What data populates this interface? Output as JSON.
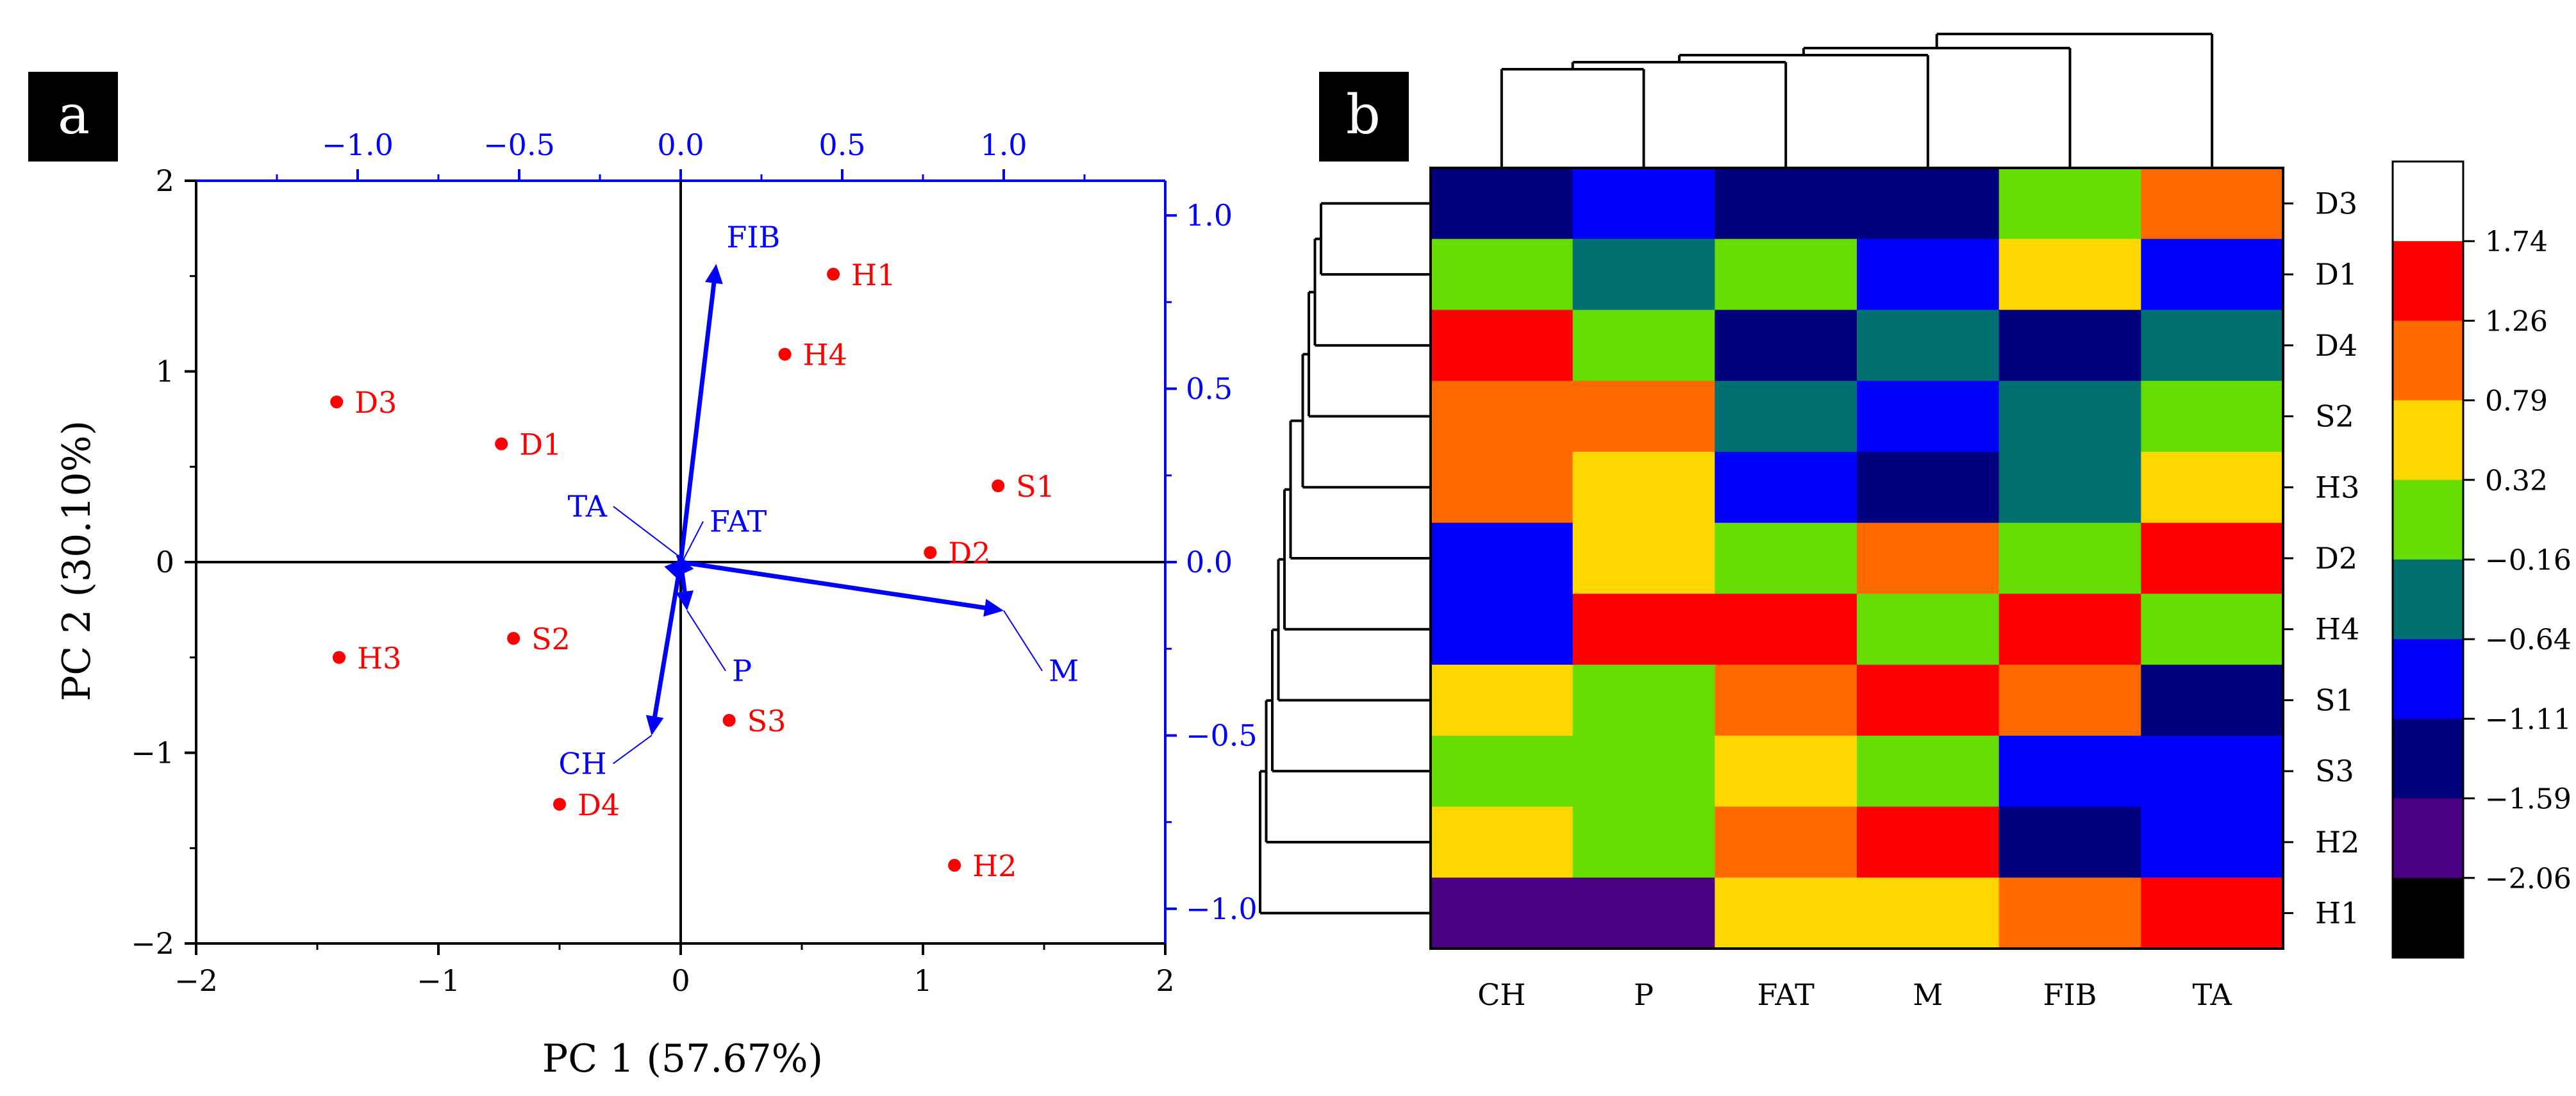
{
  "colors": {
    "axis_primary": "#000000",
    "axis_secondary": "#0000ff",
    "score_points": "#ff0000",
    "loading_vectors": "#0000ff",
    "panel_label_bg": "#000000",
    "panel_label_text": "#ffffff",
    "heatmap_scale": [
      "#000000",
      "#4b0082",
      "#00007f",
      "#0000ff",
      "#007070",
      "#66dd00",
      "#ffd700",
      "#ff6a00",
      "#ff0000",
      "#ffffff"
    ]
  },
  "chart_data": [
    {
      "panel": "a",
      "type": "scatter",
      "subtype": "pca-biplot",
      "xlabel": "PC 1 (57.67%)",
      "ylabel": "PC 2 (30.10%)",
      "xlim": [
        -2,
        2
      ],
      "ylim": [
        -2,
        2
      ],
      "xticks": [
        -2,
        -1,
        0,
        1,
        2
      ],
      "yticks": [
        -2,
        -1,
        0,
        1,
        2
      ],
      "xtick_labels": [
        "−2",
        "−1",
        "0",
        "1",
        "2"
      ],
      "ytick_labels": [
        "−2",
        "−1",
        "0",
        "1",
        "2"
      ],
      "loading_xlim": [
        -1.5,
        1.5
      ],
      "loading_ylim": [
        -1.1,
        1.1
      ],
      "top_ticks": [
        -1.0,
        -0.5,
        0.0,
        0.5,
        1.0
      ],
      "top_tick_labels": [
        "−1.0",
        "−0.5",
        "0.0",
        "0.5",
        "1.0"
      ],
      "right_ticks": [
        1.0,
        0.5,
        0.0,
        -0.5,
        -1.0
      ],
      "right_tick_labels": [
        "1.0",
        "0.5",
        "0.0",
        "−0.5",
        "−1.0"
      ],
      "scores": [
        {
          "label": "D3",
          "x": -1.42,
          "y": 0.84
        },
        {
          "label": "D1",
          "x": -0.74,
          "y": 0.62
        },
        {
          "label": "H1",
          "x": 0.63,
          "y": 1.51
        },
        {
          "label": "H4",
          "x": 0.43,
          "y": 1.09
        },
        {
          "label": "S1",
          "x": 1.31,
          "y": 0.4
        },
        {
          "label": "D2",
          "x": 1.03,
          "y": 0.05
        },
        {
          "label": "S2",
          "x": -0.69,
          "y": -0.4
        },
        {
          "label": "H3",
          "x": -1.41,
          "y": -0.5
        },
        {
          "label": "S3",
          "x": 0.2,
          "y": -0.83
        },
        {
          "label": "D4",
          "x": -0.5,
          "y": -1.27
        },
        {
          "label": "H2",
          "x": 1.13,
          "y": -1.59
        }
      ],
      "loadings": [
        {
          "label": "FIB",
          "x": 0.11,
          "y": 0.86
        },
        {
          "label": "TA",
          "x": -0.01,
          "y": 0.02
        },
        {
          "label": "FAT",
          "x": 0.01,
          "y": 0.01
        },
        {
          "label": "M",
          "x": 1.0,
          "y": -0.14
        },
        {
          "label": "P",
          "x": 0.02,
          "y": -0.14
        },
        {
          "label": "CH",
          "x": -0.09,
          "y": -0.5
        }
      ]
    },
    {
      "panel": "b",
      "type": "heatmap",
      "columns": [
        "CH",
        "P",
        "FAT",
        "M",
        "FIB",
        "TA"
      ],
      "rows": [
        "D3",
        "D1",
        "D4",
        "S2",
        "H3",
        "D2",
        "H4",
        "S1",
        "S3",
        "H2",
        "H1"
      ],
      "values": [
        [
          -1.35,
          -0.9,
          -1.35,
          -1.35,
          0.1,
          1.0
        ],
        [
          0.1,
          -0.4,
          0.1,
          -0.9,
          0.55,
          -0.9
        ],
        [
          1.5,
          0.1,
          -1.35,
          -0.4,
          -1.35,
          -0.4
        ],
        [
          1.0,
          1.0,
          -0.4,
          -0.9,
          -0.4,
          0.1
        ],
        [
          1.0,
          0.55,
          -0.9,
          -1.35,
          -0.4,
          0.55
        ],
        [
          -0.9,
          0.55,
          0.1,
          1.0,
          0.1,
          1.5
        ],
        [
          -0.9,
          1.5,
          1.5,
          0.1,
          1.5,
          0.1
        ],
        [
          0.55,
          0.1,
          1.0,
          1.5,
          1.0,
          -1.35
        ],
        [
          0.1,
          0.1,
          0.55,
          0.1,
          -0.9,
          -0.9
        ],
        [
          0.55,
          0.1,
          1.0,
          1.5,
          -1.35,
          -0.9
        ],
        [
          -1.8,
          -1.8,
          0.55,
          0.55,
          1.0,
          1.5
        ]
      ],
      "scale_labels": [
        "1.74",
        "1.26",
        "0.79",
        "0.32",
        "−0.16",
        "−0.64",
        "−1.11",
        "−1.59",
        "−2.06"
      ],
      "scale_breaks": [
        -2.06,
        -1.59,
        -1.11,
        -0.64,
        -0.16,
        0.32,
        0.79,
        1.26,
        1.74
      ],
      "row_dendrogram": [
        {
          "a": 0,
          "b": 1,
          "h": 0.9
        },
        {
          "a": 1,
          "b": 2,
          "h": 0.35
        },
        {
          "a": 2,
          "b": 3,
          "h": 0.9
        },
        {
          "a": 3,
          "b": 4,
          "h": 0.3
        },
        {
          "a": 4,
          "b": 5,
          "h": 1.15
        },
        {
          "a": 5,
          "b": 6,
          "h": 0.85
        },
        {
          "a": 6,
          "b": 7,
          "h": 1.05
        },
        {
          "a": 7,
          "b": 8,
          "h": 0.65
        },
        {
          "a": 8,
          "b": 9,
          "h": 0.35
        },
        {
          "a": 9,
          "b": 10,
          "h": 1.25
        }
      ],
      "col_dendrogram": [
        {
          "a": 0,
          "b": 1,
          "h": 0.7
        },
        {
          "a": 1,
          "b": 2,
          "h": 0.45
        },
        {
          "a": 2,
          "b": 3,
          "h": 0.65
        },
        {
          "a": 3,
          "b": 4,
          "h": 0.75
        },
        {
          "a": 4,
          "b": 5,
          "h": 0.95
        }
      ]
    }
  ],
  "panels": {
    "a": {
      "label": "a"
    },
    "b": {
      "label": "b"
    }
  }
}
